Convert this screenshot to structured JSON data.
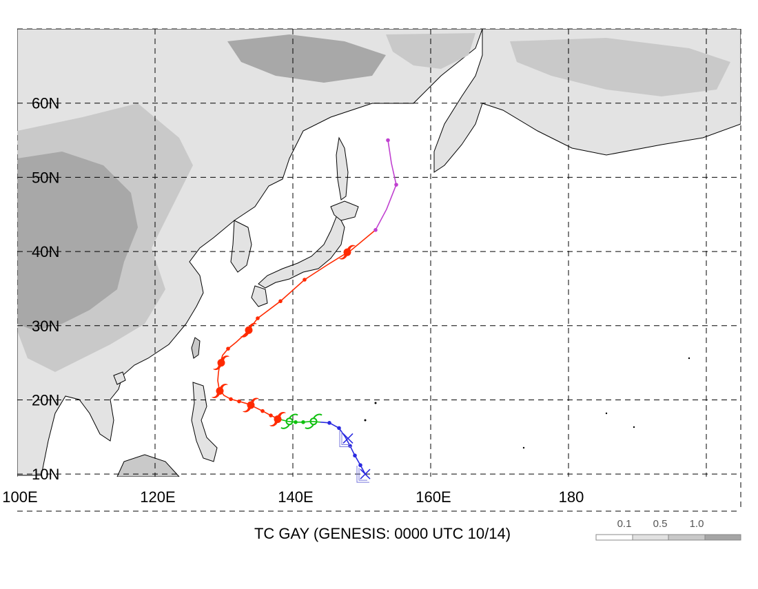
{
  "title": "TC GAY (GENESIS: 0000 UTC 10/14)",
  "map": {
    "lon_min": 100,
    "lon_max": 205,
    "lat_min": 5,
    "lat_max": 70,
    "gridlines": {
      "lats": [
        10,
        20,
        30,
        40,
        50,
        60
      ],
      "lons": [
        100,
        120,
        140,
        160,
        180,
        200
      ]
    },
    "lat_labels": [
      {
        "lat": 60,
        "text": "60N"
      },
      {
        "lat": 50,
        "text": "50N"
      },
      {
        "lat": 40,
        "text": "40N"
      },
      {
        "lat": 30,
        "text": "30N"
      },
      {
        "lat": 20,
        "text": "20N"
      },
      {
        "lat": 10,
        "text": "10N"
      }
    ],
    "lon_labels": [
      {
        "lon": 100,
        "text": "100E"
      },
      {
        "lon": 120,
        "text": "120E"
      },
      {
        "lon": 140,
        "text": "140E"
      },
      {
        "lon": 160,
        "text": "160E"
      },
      {
        "lon": 180,
        "text": "180"
      }
    ]
  },
  "legend": {
    "labels": [
      "0.1",
      "0.5",
      "1.0"
    ],
    "colors": [
      "#ffffff",
      "#e1e1e1",
      "#c8c8c8",
      "#a5a5a5"
    ]
  },
  "colors": {
    "depression": "#2a2ae0",
    "storm": "#10c010",
    "typhoon": "#ff2a00",
    "extratropical": "#c040d0",
    "land_light": "#e3e3e3",
    "land_mid": "#c9c9c9",
    "land_dark": "#a8a8a8",
    "coast": "#000000"
  },
  "track": {
    "genesis_markers": [
      {
        "lon": 150.5,
        "lat": 10.0,
        "icon": "genesis-x"
      },
      {
        "lon": 148.0,
        "lat": 14.8,
        "icon": "genesis-x"
      }
    ],
    "depression": [
      [
        150.5,
        10.0
      ],
      [
        149.8,
        11.2
      ],
      [
        149.0,
        12.5
      ],
      [
        148.3,
        13.8
      ],
      [
        147.6,
        15.0
      ],
      [
        146.7,
        16.2
      ],
      [
        145.3,
        16.9
      ],
      [
        144.0,
        17.0
      ]
    ],
    "storm": [
      [
        144.0,
        17.0
      ],
      [
        142.7,
        17.1
      ],
      [
        141.5,
        17.0
      ],
      [
        140.4,
        17.0
      ],
      [
        139.3,
        17.1
      ],
      [
        138.0,
        17.4
      ]
    ],
    "typhoon": [
      [
        138.0,
        17.4
      ],
      [
        136.8,
        17.9
      ],
      [
        135.6,
        18.5
      ],
      [
        134.5,
        19.0
      ],
      [
        133.3,
        19.5
      ],
      [
        132.2,
        19.8
      ],
      [
        131.0,
        20.1
      ],
      [
        130.0,
        20.6
      ],
      [
        129.3,
        21.5
      ],
      [
        129.1,
        22.6
      ],
      [
        129.2,
        23.7
      ],
      [
        129.4,
        24.8
      ],
      [
        129.8,
        26.0
      ],
      [
        130.6,
        26.9
      ],
      [
        131.8,
        27.8
      ],
      [
        133.2,
        29.0
      ],
      [
        134.9,
        31.0
      ],
      [
        138.2,
        33.3
      ],
      [
        141.7,
        36.2
      ],
      [
        145.0,
        38.2
      ],
      [
        148.5,
        40.2
      ],
      [
        152.0,
        42.9
      ]
    ],
    "extratropical": [
      [
        152.0,
        42.9
      ],
      [
        153.6,
        45.7
      ],
      [
        155.0,
        49.0
      ],
      [
        154.3,
        51.9
      ],
      [
        153.8,
        55.0
      ]
    ],
    "dots": [
      {
        "lon": 149.8,
        "lat": 11.2,
        "stage": "depression"
      },
      {
        "lon": 149.0,
        "lat": 12.5,
        "stage": "depression"
      },
      {
        "lon": 148.3,
        "lat": 13.8,
        "stage": "depression"
      },
      {
        "lon": 146.7,
        "lat": 16.2,
        "stage": "depression"
      },
      {
        "lon": 145.3,
        "lat": 16.9,
        "stage": "depression"
      },
      {
        "lon": 141.5,
        "lat": 17.0,
        "stage": "storm"
      },
      {
        "lon": 140.4,
        "lat": 17.0,
        "stage": "storm"
      },
      {
        "lon": 136.8,
        "lat": 17.9,
        "stage": "typhoon"
      },
      {
        "lon": 135.6,
        "lat": 18.5,
        "stage": "typhoon"
      },
      {
        "lon": 132.2,
        "lat": 19.8,
        "stage": "typhoon"
      },
      {
        "lon": 131.0,
        "lat": 20.1,
        "stage": "typhoon"
      },
      {
        "lon": 129.4,
        "lat": 24.8,
        "stage": "typhoon"
      },
      {
        "lon": 130.6,
        "lat": 26.9,
        "stage": "typhoon"
      },
      {
        "lon": 134.9,
        "lat": 31.0,
        "stage": "typhoon"
      },
      {
        "lon": 138.2,
        "lat": 33.3,
        "stage": "typhoon"
      },
      {
        "lon": 141.7,
        "lat": 36.2,
        "stage": "typhoon"
      },
      {
        "lon": 152.0,
        "lat": 42.9,
        "stage": "extratropical"
      },
      {
        "lon": 155.0,
        "lat": 49.0,
        "stage": "extratropical"
      },
      {
        "lon": 153.8,
        "lat": 55.0,
        "stage": "extratropical"
      }
    ],
    "symbols": [
      {
        "lon": 143.0,
        "lat": 17.1,
        "stage": "storm"
      },
      {
        "lon": 139.5,
        "lat": 17.1,
        "stage": "storm"
      },
      {
        "lon": 137.8,
        "lat": 17.4,
        "stage": "typhoon"
      },
      {
        "lon": 133.9,
        "lat": 19.3,
        "stage": "typhoon"
      },
      {
        "lon": 129.4,
        "lat": 21.2,
        "stage": "typhoon"
      },
      {
        "lon": 129.6,
        "lat": 25.0,
        "stage": "typhoon"
      },
      {
        "lon": 133.6,
        "lat": 29.4,
        "stage": "typhoon"
      },
      {
        "lon": 147.9,
        "lat": 39.9,
        "stage": "typhoon"
      }
    ]
  }
}
